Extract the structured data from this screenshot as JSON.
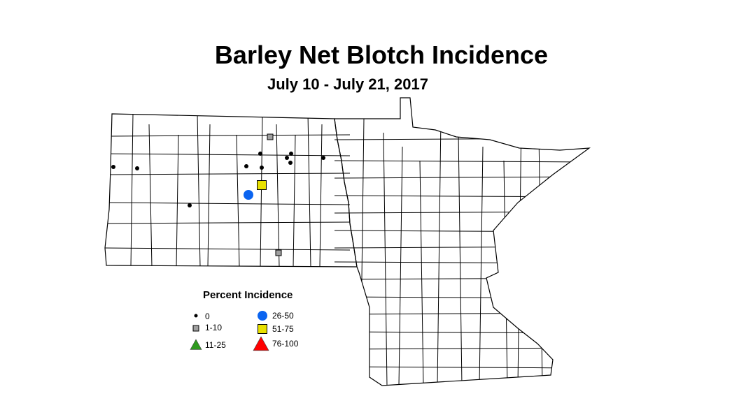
{
  "title": "Barley Net Blotch Incidence",
  "subtitle": "July 10 - July 21, 2017",
  "legend": {
    "title": "Percent Incidence",
    "classes": [
      {
        "label": "0",
        "symbol": "small-dot",
        "color": "#000000"
      },
      {
        "label": "1-10",
        "symbol": "square",
        "color": "#a0a0a0"
      },
      {
        "label": "11-25",
        "symbol": "triangle",
        "color": "#2e9a1e"
      },
      {
        "label": "26-50",
        "symbol": "circle",
        "color": "#0a64f0"
      },
      {
        "label": "51-75",
        "symbol": "square",
        "color": "#e8e000"
      },
      {
        "label": "76-100",
        "symbol": "triangle",
        "color": "#ff0000"
      }
    ]
  },
  "observations": [
    "0",
    "0",
    "1-10",
    "0",
    "0",
    "0",
    "0",
    "0",
    "0",
    "0",
    "51-75",
    "26-50",
    "0",
    "1-10"
  ]
}
